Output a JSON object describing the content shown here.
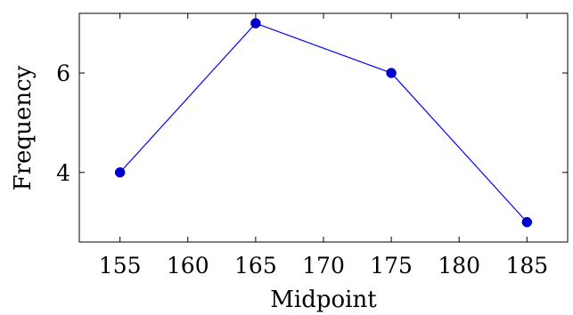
{
  "chart_data": {
    "type": "line",
    "title": "",
    "xlabel": "Midpoint",
    "ylabel": "Frequency",
    "xlim": [
      152,
      188
    ],
    "ylim": [
      2.6,
      7.2
    ],
    "x_ticks": [
      155,
      160,
      165,
      170,
      175,
      180,
      185
    ],
    "y_ticks": [
      4,
      6
    ],
    "grid": false,
    "series": [
      {
        "x": [
          155,
          165,
          175,
          185
        ],
        "y": [
          4,
          7,
          6,
          3
        ],
        "color": "#0000ff",
        "marker_color": "#0000cc"
      }
    ]
  }
}
